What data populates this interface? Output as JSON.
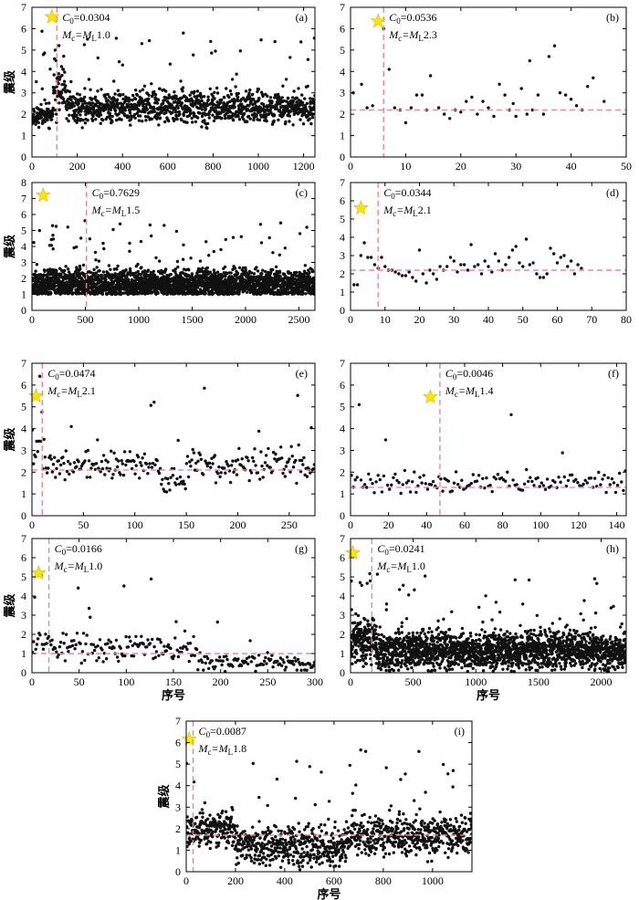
{
  "chart_data": [
    {
      "id": "a",
      "panel_label": "(a)",
      "type": "scatter",
      "xlim": [
        0,
        1250
      ],
      "ylim": [
        0,
        7
      ],
      "xticks": [
        0,
        200,
        400,
        600,
        800,
        1000,
        1200
      ],
      "yticks": [
        0,
        1,
        2,
        3,
        4,
        5,
        6,
        7
      ],
      "ylabel": "震级",
      "xlabel": "",
      "c0_prefix": "C",
      "c0_sub": "0",
      "c0_value": "=0.0304",
      "mc_prefix": "M",
      "mc_sub1": "c",
      "mc_mid": "=M",
      "mc_sub2": "L",
      "mc_value": "1.0",
      "vline": {
        "x": 110
      },
      "hline": null,
      "star": {
        "x": 88,
        "y": 6.55
      },
      "gen": {
        "n": 1250,
        "seed": 11,
        "segments": [
          [
            0,
            95,
            1.9,
            0.35
          ],
          [
            95,
            150,
            3.0,
            0.8
          ],
          [
            150,
            1250,
            2.3,
            0.45
          ]
        ],
        "floor": 1.25,
        "spike_prob": 0.03
      }
    },
    {
      "id": "b",
      "panel_label": "(b)",
      "type": "scatter",
      "xlim": [
        0,
        50
      ],
      "ylim": [
        0,
        7
      ],
      "xticks": [
        0,
        10,
        20,
        30,
        40,
        50
      ],
      "yticks": [
        0,
        1,
        2,
        3,
        4,
        5,
        6,
        7
      ],
      "ylabel": "",
      "xlabel": "",
      "c0_prefix": "C",
      "c0_sub": "0",
      "c0_value": "=0.0536",
      "mc_prefix": "M",
      "mc_sub1": "c",
      "mc_mid": "=M",
      "mc_sub2": "L",
      "mc_value": "2.3",
      "vline": {
        "x": 6
      },
      "hline": {
        "y": 2.2
      },
      "star": {
        "x": 5,
        "y": 6.35
      },
      "points": [
        [
          0.5,
          3.0
        ],
        [
          2,
          3.4
        ],
        [
          3,
          2.3
        ],
        [
          4,
          2.4
        ],
        [
          6,
          6.0
        ],
        [
          7,
          4.1
        ],
        [
          8,
          2.3
        ],
        [
          9,
          2.2
        ],
        [
          10,
          1.6
        ],
        [
          11,
          2.3
        ],
        [
          12,
          2.9
        ],
        [
          13,
          2.9
        ],
        [
          13.8,
          2.2
        ],
        [
          14.5,
          3.8
        ],
        [
          16,
          2.3
        ],
        [
          17,
          2.0
        ],
        [
          18,
          1.8
        ],
        [
          19,
          2.2
        ],
        [
          20,
          2.1
        ],
        [
          21,
          2.6
        ],
        [
          22,
          2.8
        ],
        [
          23,
          2.0
        ],
        [
          24,
          2.6
        ],
        [
          25,
          2.3
        ],
        [
          26,
          1.9
        ],
        [
          27,
          3.4
        ],
        [
          28,
          2.9
        ],
        [
          28.8,
          2.2
        ],
        [
          29.5,
          2.5
        ],
        [
          30,
          1.9
        ],
        [
          31,
          3.2
        ],
        [
          32,
          2.0
        ],
        [
          32.5,
          4.5
        ],
        [
          33,
          2.2
        ],
        [
          34,
          2.9
        ],
        [
          35,
          2.0
        ],
        [
          36,
          4.7
        ],
        [
          37,
          5.2
        ],
        [
          38,
          3.0
        ],
        [
          39,
          2.9
        ],
        [
          40,
          2.7
        ],
        [
          41,
          2.4
        ],
        [
          42,
          2.2
        ],
        [
          43,
          3.3
        ],
        [
          44,
          3.7
        ],
        [
          46,
          2.6
        ]
      ]
    },
    {
      "id": "c",
      "panel_label": "(c)",
      "type": "scatter",
      "xlim": [
        0,
        2650
      ],
      "ylim": [
        0,
        8
      ],
      "xticks": [
        0,
        500,
        1000,
        1500,
        2000,
        2500
      ],
      "yticks": [
        0,
        1,
        2,
        3,
        4,
        5,
        6,
        7,
        8
      ],
      "ylabel": "震级",
      "xlabel": "",
      "c0_prefix": "C",
      "c0_sub": "0",
      "c0_value": "=0.7629",
      "mc_prefix": "M",
      "mc_sub1": "c",
      "mc_mid": "=M",
      "mc_sub2": "L",
      "mc_value": "1.5",
      "vline": {
        "x": 510
      },
      "hline": null,
      "star": {
        "x": 105,
        "y": 7.2
      },
      "gen": {
        "n": 2600,
        "seed": 23,
        "segments": [
          [
            0,
            2650,
            1.65,
            0.55
          ]
        ],
        "floor": 1.0,
        "spike_prob": 0.025
      }
    },
    {
      "id": "d",
      "panel_label": "(d)",
      "type": "scatter",
      "xlim": [
        0,
        80
      ],
      "ylim": [
        0,
        7
      ],
      "xticks": [
        0,
        10,
        20,
        30,
        40,
        50,
        60,
        70,
        80
      ],
      "yticks": [
        0,
        1,
        2,
        3,
        4,
        5,
        6,
        7
      ],
      "ylabel": "",
      "xlabel": "",
      "c0_prefix": "C",
      "c0_sub": "0",
      "c0_value": "=0.0344",
      "mc_prefix": "M",
      "mc_sub1": "c",
      "mc_mid": "=M",
      "mc_sub2": "L",
      "mc_value": "2.1",
      "vline": {
        "x": 8
      },
      "hline": {
        "y": 2.2
      },
      "star": {
        "x": 3,
        "y": 5.6
      },
      "points": [
        [
          1,
          1.4
        ],
        [
          2,
          1.4
        ],
        [
          3,
          3.0
        ],
        [
          4,
          3.7
        ],
        [
          5,
          2.9
        ],
        [
          6,
          2.9
        ],
        [
          7,
          2.5
        ],
        [
          8,
          2.3
        ],
        [
          9,
          2.9
        ],
        [
          10,
          2.4
        ],
        [
          11,
          2.2
        ],
        [
          12,
          2.2
        ],
        [
          13,
          2.1
        ],
        [
          14,
          2.0
        ],
        [
          15,
          1.9
        ],
        [
          16,
          1.9
        ],
        [
          17,
          2.1
        ],
        [
          18,
          1.8
        ],
        [
          19,
          1.6
        ],
        [
          20,
          3.3
        ],
        [
          21,
          2.0
        ],
        [
          22,
          1.5
        ],
        [
          23,
          2.2
        ],
        [
          24,
          2.0
        ],
        [
          25,
          1.7
        ],
        [
          26,
          2.4
        ],
        [
          27,
          2.2
        ],
        [
          28,
          2.4
        ],
        [
          29,
          2.9
        ],
        [
          30,
          2.7
        ],
        [
          31,
          2.1
        ],
        [
          32,
          2.5
        ],
        [
          33,
          2.5
        ],
        [
          34,
          2.2
        ],
        [
          35,
          3.6
        ],
        [
          36,
          2.4
        ],
        [
          37,
          2.5
        ],
        [
          38,
          2.0
        ],
        [
          39,
          2.7
        ],
        [
          40,
          2.4
        ],
        [
          41,
          2.1
        ],
        [
          42,
          3.1
        ],
        [
          43,
          2.7
        ],
        [
          44,
          2.2
        ],
        [
          45,
          2.5
        ],
        [
          46,
          2.9
        ],
        [
          47,
          3.3
        ],
        [
          48,
          3.5
        ],
        [
          49,
          2.6
        ],
        [
          50,
          2.4
        ],
        [
          51,
          3.9
        ],
        [
          52,
          2.5
        ],
        [
          53,
          2.6
        ],
        [
          54,
          2.0
        ],
        [
          55,
          1.8
        ],
        [
          56,
          1.8
        ],
        [
          57,
          2.0
        ],
        [
          58,
          3.4
        ],
        [
          59,
          3.1
        ],
        [
          60,
          2.6
        ],
        [
          61,
          2.9
        ],
        [
          62,
          3.0
        ],
        [
          63,
          2.4
        ],
        [
          64,
          2.7
        ],
        [
          65,
          2.0
        ],
        [
          66,
          2.5
        ],
        [
          67,
          2.3
        ]
      ]
    },
    {
      "id": "e",
      "panel_label": "(e)",
      "type": "scatter",
      "xlim": [
        0,
        275
      ],
      "ylim": [
        0,
        7
      ],
      "xticks": [
        0,
        50,
        100,
        150,
        200,
        250
      ],
      "yticks": [
        0,
        1,
        2,
        3,
        4,
        5,
        6,
        7
      ],
      "ylabel": "震级",
      "xlabel": "",
      "c0_prefix": "C",
      "c0_sub": "0",
      "c0_value": "=0.0474",
      "mc_prefix": "M",
      "mc_sub1": "c",
      "mc_mid": "=M",
      "mc_sub2": "L",
      "mc_value": "2.1",
      "vline": {
        "x": 10
      },
      "hline": {
        "y": 2.1
      },
      "star": {
        "x": 4,
        "y": 5.5
      },
      "gen": {
        "n": 270,
        "seed": 37,
        "segments": [
          [
            0,
            12,
            3.0,
            1.0
          ],
          [
            12,
            125,
            2.3,
            0.4
          ],
          [
            125,
            150,
            1.6,
            0.35
          ],
          [
            150,
            275,
            2.3,
            0.45
          ]
        ],
        "floor": 1.05,
        "spike_prob": 0.04
      }
    },
    {
      "id": "f",
      "panel_label": "(f)",
      "type": "scatter",
      "xlim": [
        0,
        145
      ],
      "ylim": [
        0,
        7
      ],
      "xticks": [
        0,
        20,
        40,
        60,
        80,
        100,
        120,
        140
      ],
      "yticks": [
        0,
        1,
        2,
        3,
        4,
        5,
        6,
        7
      ],
      "ylabel": "",
      "xlabel": "",
      "c0_prefix": "C",
      "c0_sub": "0",
      "c0_value": "=0.0046",
      "mc_prefix": "M",
      "mc_sub1": "c",
      "mc_mid": "=M",
      "mc_sub2": "L",
      "mc_value": "1.4",
      "vline": {
        "x": 47
      },
      "hline": {
        "y": 1.3
      },
      "star": {
        "x": 42,
        "y": 5.45
      },
      "gen": {
        "n": 145,
        "seed": 41,
        "segments": [
          [
            0,
            145,
            1.55,
            0.3
          ]
        ],
        "floor": 1.0,
        "spike_prob": 0.03
      }
    },
    {
      "id": "g",
      "panel_label": "(g)",
      "type": "scatter",
      "xlim": [
        0,
        300
      ],
      "ylim": [
        0,
        7
      ],
      "xticks": [
        0,
        50,
        100,
        150,
        200,
        250,
        300
      ],
      "yticks": [
        0,
        1,
        2,
        3,
        4,
        5,
        6,
        7
      ],
      "ylabel": "震级",
      "xlabel": "序号",
      "c0_prefix": "C",
      "c0_sub": "0",
      "c0_value": "=0.0166",
      "mc_prefix": "M",
      "mc_sub1": "c",
      "mc_mid": "=M",
      "mc_sub2": "L",
      "mc_value": "1.0",
      "vline": {
        "x": 18
      },
      "hline": {
        "y": 1.0
      },
      "star": {
        "x": 7,
        "y": 5.2
      },
      "gen": {
        "n": 260,
        "seed": 53,
        "segments": [
          [
            0,
            18,
            1.9,
            0.5
          ],
          [
            18,
            175,
            1.3,
            0.45
          ],
          [
            175,
            260,
            0.55,
            0.3
          ]
        ],
        "floor": 0.05,
        "spike_prob": 0.04
      }
    },
    {
      "id": "h",
      "panel_label": "(h)",
      "type": "scatter",
      "xlim": [
        0,
        2200
      ],
      "ylim": [
        0,
        7
      ],
      "xticks": [
        0,
        500,
        1000,
        1500,
        2000
      ],
      "yticks": [
        0,
        1,
        2,
        3,
        4,
        5,
        6,
        7
      ],
      "ylabel": "",
      "xlabel": "序号",
      "c0_prefix": "C",
      "c0_sub": "0",
      "c0_value": "=0.0241",
      "mc_prefix": "M",
      "mc_sub1": "c",
      "mc_mid": "=M",
      "mc_sub2": "L",
      "mc_value": "1.0",
      "vline": {
        "x": 170
      },
      "hline": null,
      "star": {
        "x": 18,
        "y": 6.25
      },
      "gen": {
        "n": 2150,
        "seed": 67,
        "segments": [
          [
            0,
            200,
            1.7,
            0.7
          ],
          [
            200,
            2200,
            1.15,
            0.6
          ]
        ],
        "floor": 0.05,
        "spike_prob": 0.02
      }
    },
    {
      "id": "i",
      "panel_label": "(i)",
      "type": "scatter",
      "xlim": [
        0,
        1160
      ],
      "ylim": [
        0,
        7
      ],
      "xticks": [
        0,
        200,
        400,
        600,
        800,
        1000
      ],
      "yticks": [
        0,
        1,
        2,
        3,
        4,
        5,
        6,
        7
      ],
      "ylabel": "震级",
      "xlabel": "序号",
      "c0_prefix": "C",
      "c0_sub": "0",
      "c0_value": "=0.0087",
      "mc_prefix": "M",
      "mc_sub1": "c",
      "mc_mid": "=M",
      "mc_sub2": "L",
      "mc_value": "1.8",
      "vline": {
        "x": 28
      },
      "hline": {
        "y": 1.7
      },
      "star": {
        "x": 12,
        "y": 6.15
      },
      "gen": {
        "n": 1160,
        "seed": 79,
        "segments": [
          [
            0,
            200,
            2.0,
            0.5
          ],
          [
            200,
            650,
            1.2,
            0.55
          ],
          [
            650,
            1160,
            1.7,
            0.55
          ]
        ],
        "floor": 0.05,
        "spike_prob": 0.025
      }
    }
  ],
  "colors": {
    "points": "#111111",
    "axis": "#000000",
    "ref_line": "#e58a9b",
    "star": "#ffe600",
    "star_edge": "#d4b800"
  }
}
